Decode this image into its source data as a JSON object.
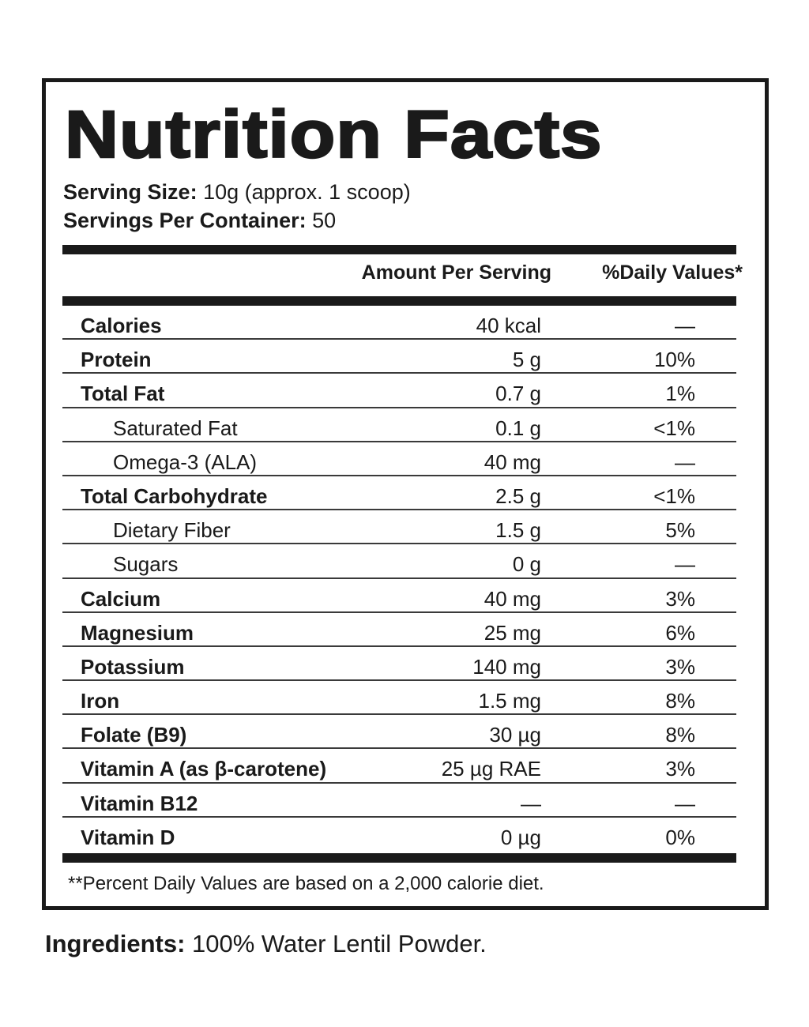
{
  "label": {
    "title": "Nutrition Facts",
    "serving_size": {
      "label": "Serving Size:",
      "value": " 10g (approx. 1 scoop)"
    },
    "servings_per_container": {
      "label": "Servings Per Container:",
      "value": " 50"
    },
    "columns": {
      "amount": "Amount Per Serving",
      "daily_value": "%Daily Values*"
    },
    "rows": [
      {
        "name": "Calories",
        "amount": "40 kcal",
        "dv": "—",
        "style": "bold"
      },
      {
        "name": "Protein",
        "amount": "5 g",
        "dv": "10%",
        "style": "bold"
      },
      {
        "name": "Total Fat",
        "amount": "0.7 g",
        "dv": "1%",
        "style": "bold"
      },
      {
        "name": "Saturated Fat",
        "amount": "0.1 g",
        "dv": "<1%",
        "style": "indent"
      },
      {
        "name": "Omega-3 (ALA)",
        "amount": "40 mg",
        "dv": "—",
        "style": "indent"
      },
      {
        "name": "Total Carbohydrate",
        "amount": "2.5 g",
        "dv": "<1%",
        "style": "bold"
      },
      {
        "name": "Dietary Fiber",
        "amount": "1.5 g",
        "dv": "5%",
        "style": "indent"
      },
      {
        "name": "Sugars",
        "amount": "0 g",
        "dv": "—",
        "style": "indent"
      },
      {
        "name": "Calcium",
        "amount": "40 mg",
        "dv": "3%",
        "style": "bold"
      },
      {
        "name": "Magnesium",
        "amount": "25 mg",
        "dv": "6%",
        "style": "bold"
      },
      {
        "name": "Potassium",
        "amount": "140 mg",
        "dv": "3%",
        "style": "bold"
      },
      {
        "name": "Iron",
        "amount": "1.5 mg",
        "dv": "8%",
        "style": "bold"
      },
      {
        "name": "Folate (B9)",
        "amount": "30 µg",
        "dv": "8%",
        "style": "bold"
      },
      {
        "name": "Vitamin A (as β-carotene)",
        "amount": "25 µg RAE",
        "dv": "3%",
        "style": "bold"
      },
      {
        "name": "Vitamin B12",
        "amount": "—",
        "dv": "—",
        "style": "bold"
      },
      {
        "name": "Vitamin D",
        "amount": "0 µg",
        "dv": "0%",
        "style": "bold"
      }
    ],
    "footnote": "**Percent Daily Values are based on a 2,000 calorie diet."
  },
  "ingredients": {
    "label": "Ingredients:",
    "value": " 100% Water Lentil Powder."
  }
}
